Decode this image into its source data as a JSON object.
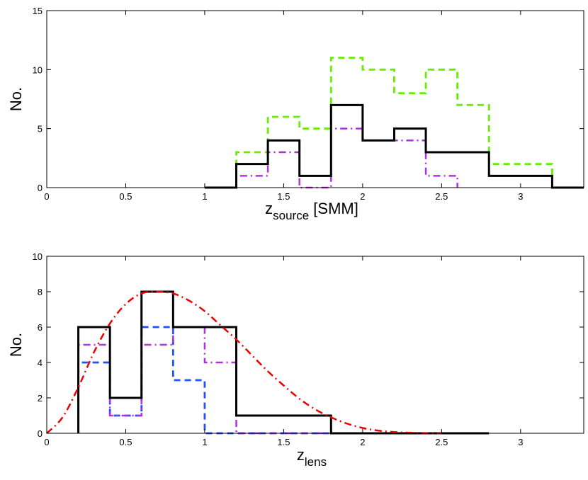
{
  "chart_data": [
    {
      "type": "line",
      "step": true,
      "xlabel_main": "z",
      "xlabel_sub": "source",
      "xlabel_suffix": " [SMM]",
      "ylabel": "No.",
      "xlim": [
        0,
        3.4
      ],
      "ylim": [
        0,
        15
      ],
      "xticks": [
        0,
        0.5,
        1,
        1.5,
        2,
        2.5,
        3
      ],
      "xtick_labels": [
        "0",
        "0.5",
        "1",
        "1.5",
        "2",
        "2.5",
        "3"
      ],
      "yticks": [
        0,
        5,
        10,
        15
      ],
      "ytick_labels": [
        "0",
        "5",
        "10",
        "15"
      ],
      "series": [
        {
          "name": "green-dashed",
          "color": "#66ee00",
          "dash": "dashed",
          "edges": [
            1.0,
            1.2,
            1.4,
            1.6,
            1.8,
            2.0,
            2.2,
            2.4,
            2.6,
            2.8,
            3.0,
            3.2
          ],
          "values": [
            0,
            3,
            6,
            5,
            11,
            10,
            8,
            10,
            7,
            2,
            2
          ]
        },
        {
          "name": "magenta-dashdot",
          "color": "#b030e0",
          "dash": "dashdot",
          "edges": [
            1.2,
            1.4,
            1.6,
            1.8,
            2.0,
            2.2,
            2.4,
            2.6
          ],
          "values": [
            1,
            3,
            0,
            5,
            4,
            4,
            1
          ]
        },
        {
          "name": "black-solid",
          "color": "#000000",
          "dash": "solid",
          "edges": [
            1.0,
            1.2,
            1.4,
            1.6,
            1.8,
            2.0,
            2.2,
            2.4,
            2.6,
            2.8,
            3.0,
            3.2,
            3.4
          ],
          "values": [
            0,
            2,
            4,
            1,
            7,
            4,
            5,
            3,
            3,
            1,
            1,
            0
          ]
        }
      ]
    },
    {
      "type": "line",
      "step": true,
      "xlabel_main": "z",
      "xlabel_sub": "lens",
      "xlabel_suffix": "",
      "ylabel": "No.",
      "xlim": [
        0,
        3.4
      ],
      "ylim": [
        0,
        10
      ],
      "xticks": [
        0,
        0.5,
        1,
        1.5,
        2,
        2.5,
        3
      ],
      "xtick_labels": [
        "0",
        "0.5",
        "1",
        "1.5",
        "2",
        "2.5",
        "3"
      ],
      "yticks": [
        0,
        2,
        4,
        6,
        8,
        10
      ],
      "ytick_labels": [
        "0",
        "2",
        "4",
        "6",
        "8",
        "10"
      ],
      "series": [
        {
          "name": "blue-dashed",
          "color": "#2050ff",
          "dash": "dashed",
          "edges": [
            0.2,
            0.4,
            0.6,
            0.8,
            1.0,
            1.2,
            1.4,
            1.6,
            1.8
          ],
          "values": [
            4,
            1,
            6,
            3,
            0,
            0,
            0,
            0
          ]
        },
        {
          "name": "magenta-dashdot",
          "color": "#b030e0",
          "dash": "dashdot",
          "edges": [
            0.2,
            0.4,
            0.6,
            0.8,
            1.0,
            1.2,
            1.4,
            1.6,
            1.8
          ],
          "values": [
            5,
            1,
            5,
            6,
            4,
            0,
            0,
            0
          ]
        },
        {
          "name": "black-solid",
          "color": "#000000",
          "dash": "solid",
          "edges": [
            0.2,
            0.4,
            0.6,
            0.8,
            1.0,
            1.2,
            1.4,
            1.6,
            1.8,
            2.0,
            2.2,
            2.4,
            2.6,
            2.8
          ],
          "values": [
            6,
            2,
            8,
            6,
            6,
            1,
            1,
            1,
            0,
            0,
            0,
            0,
            0
          ]
        },
        {
          "name": "red-dashdot-curve",
          "color": "#ee0000",
          "dash": "dashdot",
          "smooth": true,
          "x": [
            0.0,
            0.1,
            0.2,
            0.3,
            0.4,
            0.5,
            0.6,
            0.7,
            0.8,
            0.9,
            1.0,
            1.1,
            1.2,
            1.3,
            1.4,
            1.5,
            1.6,
            1.7,
            1.8,
            1.9,
            2.0,
            2.1,
            2.2,
            2.3,
            2.4,
            2.5
          ],
          "y": [
            0.0,
            0.9,
            2.6,
            4.6,
            6.2,
            7.3,
            7.9,
            8.0,
            7.9,
            7.5,
            6.9,
            6.1,
            5.3,
            4.4,
            3.5,
            2.7,
            1.95,
            1.35,
            0.9,
            0.55,
            0.3,
            0.15,
            0.07,
            0.03,
            0.01,
            0.0
          ]
        }
      ]
    }
  ]
}
